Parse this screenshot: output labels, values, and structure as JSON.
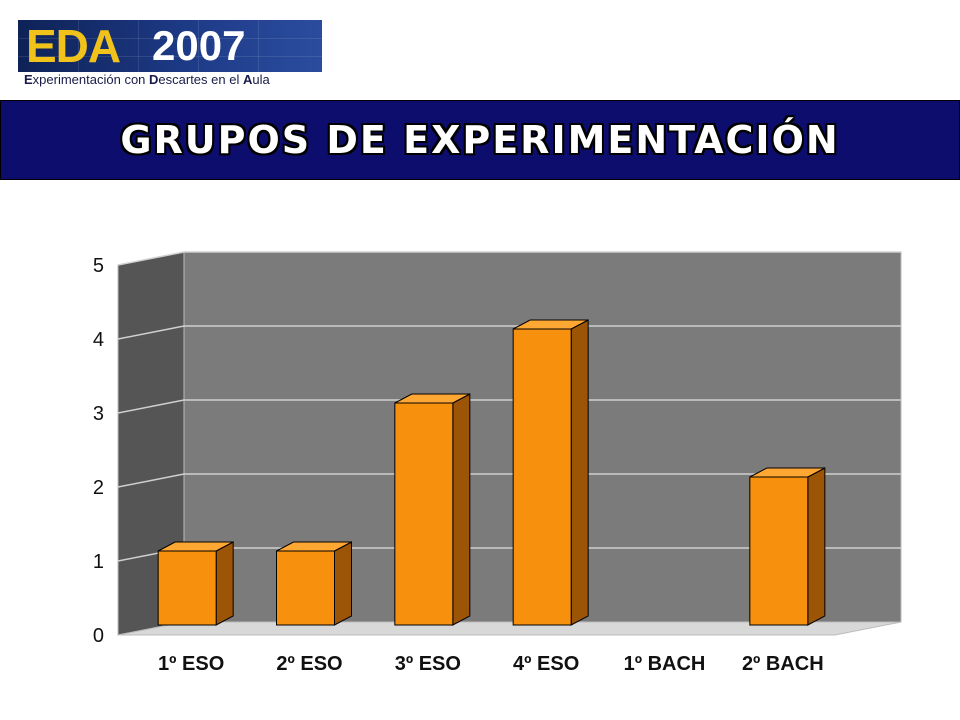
{
  "logo": {
    "eda": "EDA",
    "year": "2007",
    "subtitle_parts": [
      {
        "bold": "E",
        "rest": "xperimentación con "
      },
      {
        "bold": "D",
        "rest": "escartes en el "
      },
      {
        "bold": "A",
        "rest": "ula"
      }
    ]
  },
  "banner": {
    "title": "GRUPOS DE EXPERIMENTACIÓN"
  },
  "colors": {
    "bar_front": "#f7900c",
    "bar_side": "#9c5406",
    "bar_top": "#ffa733",
    "back_wall": "#7b7b7b",
    "side_wall": "#555555",
    "floor": "#d8d8d8",
    "banner_bg": "#0d0d6e"
  },
  "chart_data": {
    "type": "bar",
    "categories": [
      "1º ESO",
      "2º ESO",
      "3º ESO",
      "4º ESO",
      "1º BACH",
      "2º BACH"
    ],
    "values": [
      1,
      1,
      3,
      4,
      0,
      2
    ],
    "ylim": [
      0,
      5
    ],
    "yticks": [
      "0",
      "1",
      "2",
      "3",
      "4",
      "5"
    ],
    "grid": true,
    "legend": "none",
    "style": "3d"
  }
}
